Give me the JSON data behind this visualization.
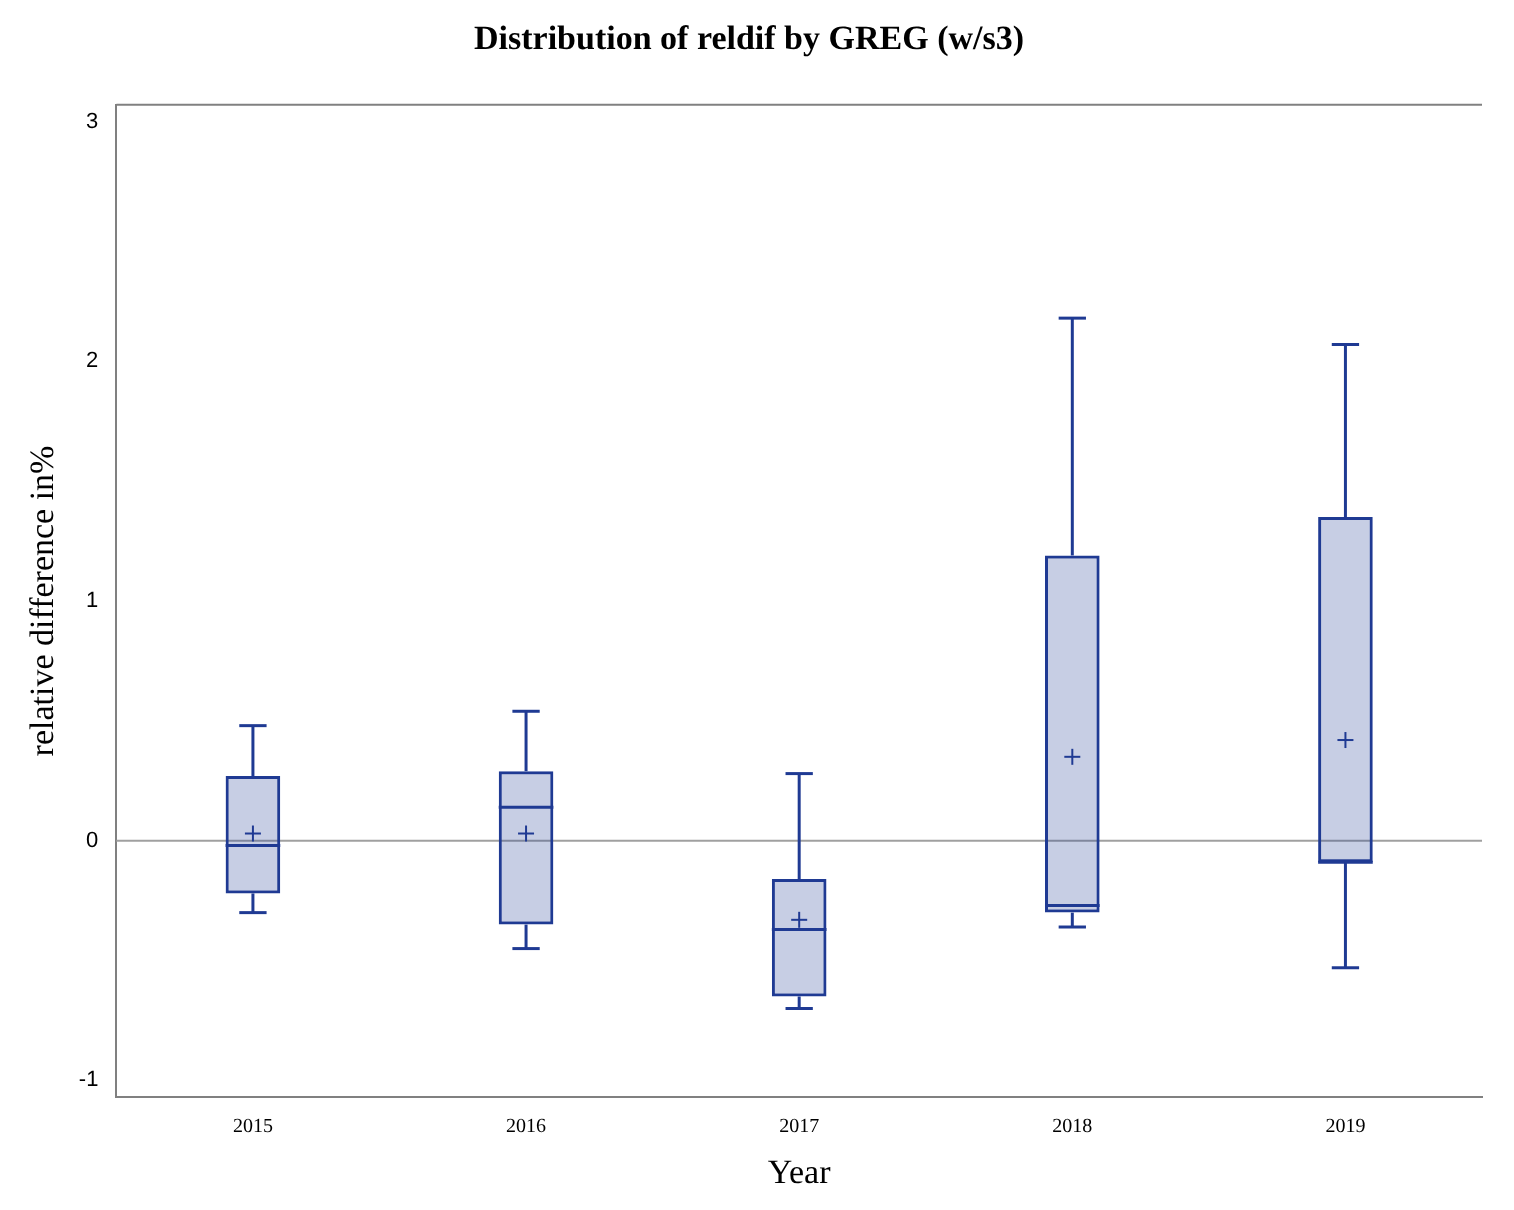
{
  "chart_data": {
    "type": "box",
    "title": "Distribution of reldif by GREG (w/s3)",
    "xlabel": "Year",
    "ylabel": "relative difference in%",
    "categories": [
      "2015",
      "2016",
      "2017",
      "2018",
      "2019"
    ],
    "boxes": [
      {
        "low": -0.3,
        "q1": -0.22,
        "median": -0.02,
        "q3": 0.27,
        "high": 0.48,
        "mean": 0.03
      },
      {
        "low": -0.45,
        "q1": -0.35,
        "median": 0.14,
        "q3": 0.29,
        "high": 0.54,
        "mean": 0.03
      },
      {
        "low": -0.7,
        "q1": -0.65,
        "median": -0.37,
        "q3": -0.16,
        "high": 0.28,
        "mean": -0.33
      },
      {
        "low": -0.36,
        "q1": -0.3,
        "median": -0.27,
        "q3": 1.19,
        "high": 2.18,
        "mean": 0.35
      },
      {
        "low": -0.53,
        "q1": -0.09,
        "median": -0.09,
        "q3": 1.35,
        "high": 2.07,
        "mean": 0.42
      }
    ],
    "color": "#1f3a93",
    "ylim": [
      -1.07,
      3.07
    ],
    "yticks": [
      -1,
      0,
      1,
      2,
      3
    ],
    "ref_lines": [
      {
        "axis": "y",
        "value": 0,
        "color": "#a0a0a0"
      }
    ],
    "grid": false,
    "legend": false
  }
}
